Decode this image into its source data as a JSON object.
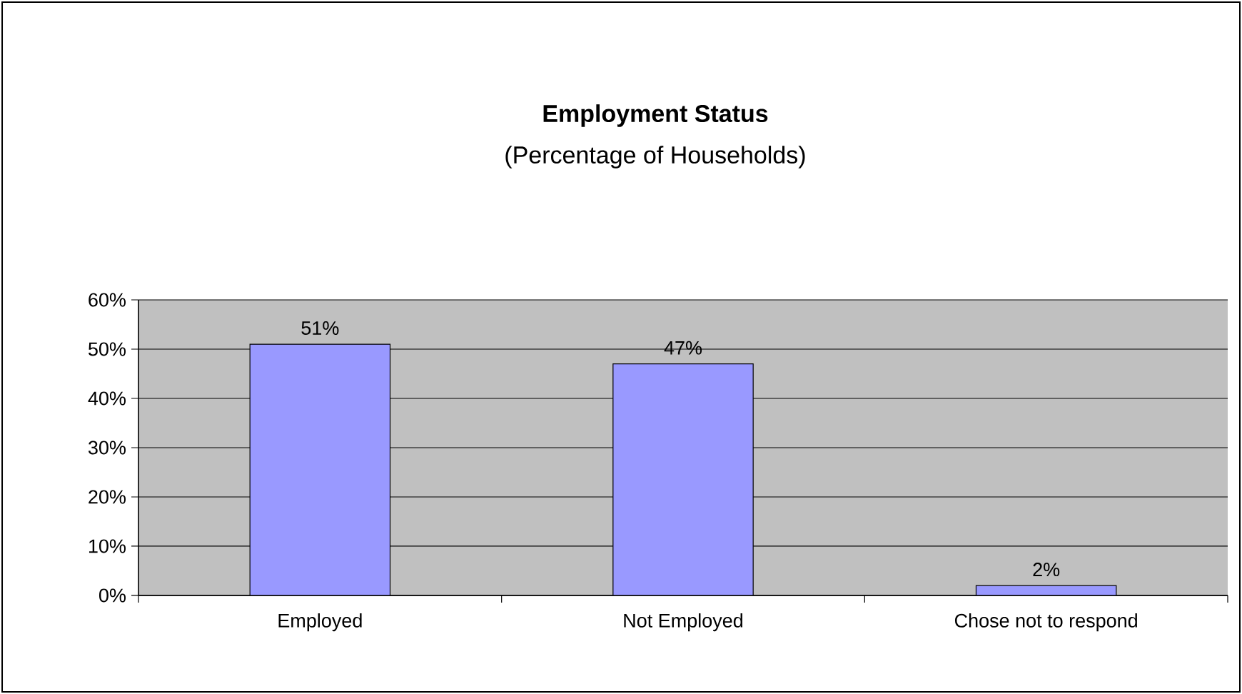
{
  "chart_data": {
    "type": "bar",
    "title": "Employment Status",
    "subtitle": "(Percentage of Households)",
    "categories": [
      "Employed",
      "Not Employed",
      "Chose not to respond"
    ],
    "values": [
      51,
      47,
      2
    ],
    "value_labels": [
      "51%",
      "47%",
      "2%"
    ],
    "color": "#9999ff",
    "ylim": [
      0,
      60
    ],
    "yticks": [
      {
        "value": 0,
        "label": "0%"
      },
      {
        "value": 10,
        "label": "10%"
      },
      {
        "value": 20,
        "label": "20%"
      },
      {
        "value": 30,
        "label": "30%"
      },
      {
        "value": 40,
        "label": "40%"
      },
      {
        "value": 50,
        "label": "50%"
      },
      {
        "value": 60,
        "label": "60%"
      }
    ],
    "grid": "y"
  }
}
